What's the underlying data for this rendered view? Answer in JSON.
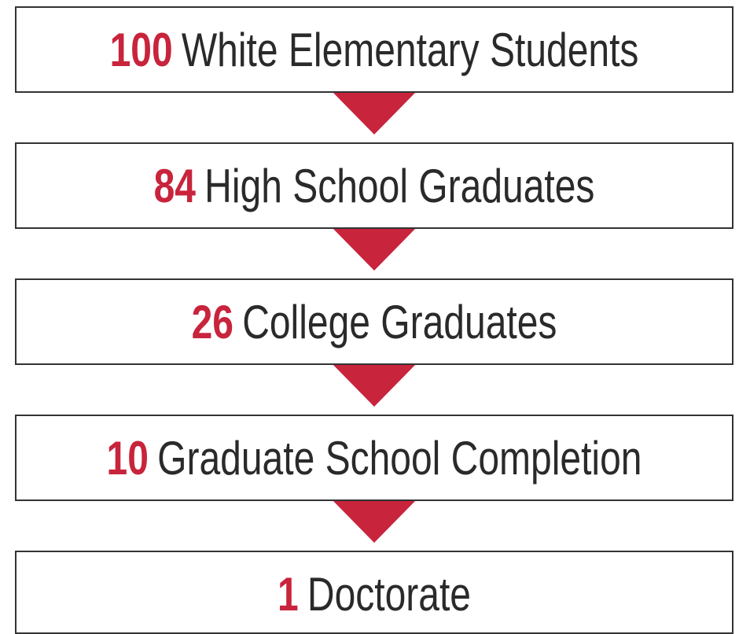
{
  "nodes": [
    {
      "count": 100,
      "label": "White Elementary Students"
    },
    {
      "count": 84,
      "label": "High School Graduates"
    },
    {
      "count": 26,
      "label": "College Graduates"
    },
    {
      "count": 10,
      "label": "Graduate School Completion"
    },
    {
      "count": 1,
      "label": "Doctorate"
    }
  ]
}
